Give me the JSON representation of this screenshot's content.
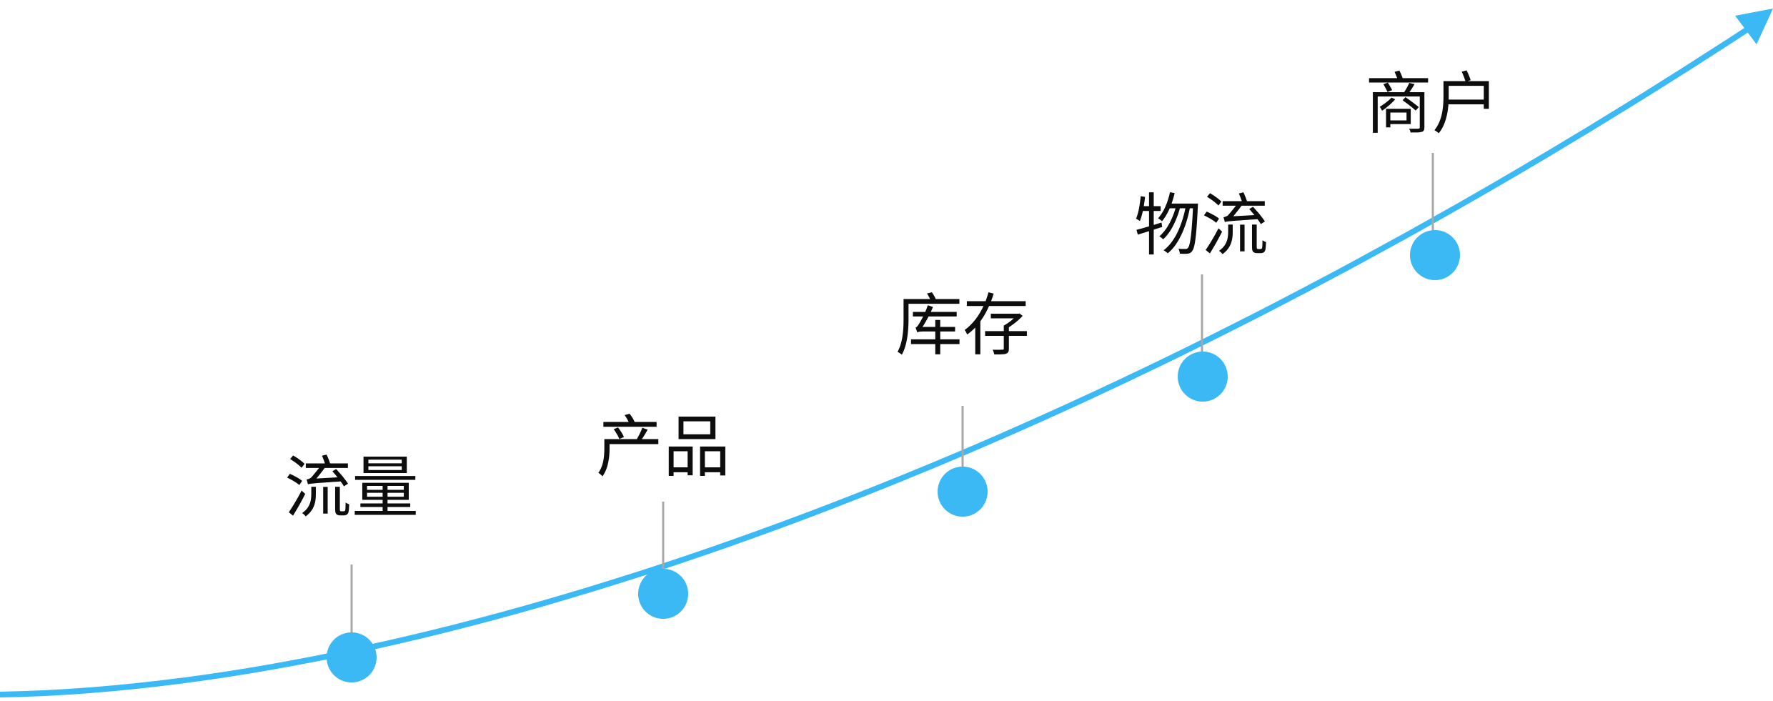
{
  "colors": {
    "curve": "#3ab9f5",
    "node": "#3ab9f5",
    "connector": "#a8a8a8",
    "label": "#0d0d0d"
  },
  "stages": [
    {
      "label": "流量"
    },
    {
      "label": "产品"
    },
    {
      "label": "库存"
    },
    {
      "label": "物流"
    },
    {
      "label": "商户"
    }
  ]
}
